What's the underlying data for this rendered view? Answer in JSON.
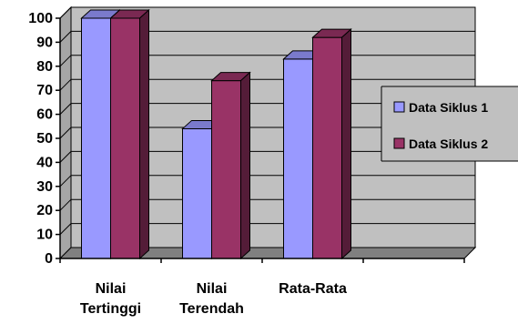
{
  "chart_data": {
    "type": "bar",
    "style": "3d-clustered-column",
    "categories": [
      [
        "Nilai",
        "Tertinggi"
      ],
      [
        "Nilai",
        "Terendah"
      ],
      [
        "Rata-Rata"
      ],
      [
        ""
      ]
    ],
    "series": [
      {
        "name": "Data Siklus 1",
        "values": [
          100,
          54,
          83,
          null
        ],
        "color": "#9999ff"
      },
      {
        "name": "Data Siklus 2",
        "values": [
          100,
          74,
          92,
          null
        ],
        "color": "#993366"
      }
    ],
    "ylim": [
      0,
      100
    ],
    "yticks": [
      0,
      10,
      20,
      30,
      40,
      50,
      60,
      70,
      80,
      90,
      100
    ],
    "grid": true,
    "legend": "right",
    "wall_color": "#c0c0c0",
    "floor_color": "#808080"
  }
}
